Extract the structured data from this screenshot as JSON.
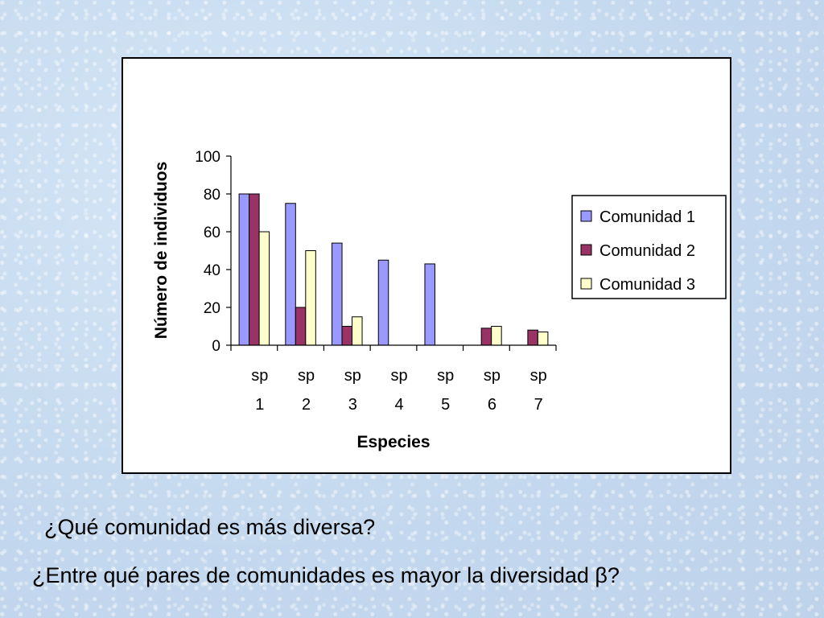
{
  "chart_data": {
    "type": "bar",
    "title": "",
    "xlabel": "Especies",
    "ylabel": "Número de individuos",
    "ylim": [
      0,
      100
    ],
    "yticks": [
      0,
      20,
      40,
      60,
      80,
      100
    ],
    "categories": [
      [
        "sp",
        "1"
      ],
      [
        "sp",
        "2"
      ],
      [
        "sp",
        "3"
      ],
      [
        "sp",
        "4"
      ],
      [
        "sp",
        "5"
      ],
      [
        "sp",
        "6"
      ],
      [
        "sp",
        "7"
      ]
    ],
    "series": [
      {
        "name": "Comunidad 1",
        "color": "#9999ff",
        "values": [
          80,
          75,
          54,
          45,
          43,
          0,
          0
        ]
      },
      {
        "name": "Comunidad 2",
        "color": "#993366",
        "values": [
          80,
          20,
          10,
          0,
          0,
          9,
          8
        ]
      },
      {
        "name": "Comunidad 3",
        "color": "#ffffcc",
        "values": [
          60,
          50,
          15,
          0,
          0,
          10,
          7
        ]
      }
    ],
    "grid": false,
    "legend_position": "right"
  },
  "questions": {
    "q1": "¿Qué comunidad es más diversa?",
    "q2": "¿Entre qué pares de comunidades es mayor la diversidad β?"
  }
}
